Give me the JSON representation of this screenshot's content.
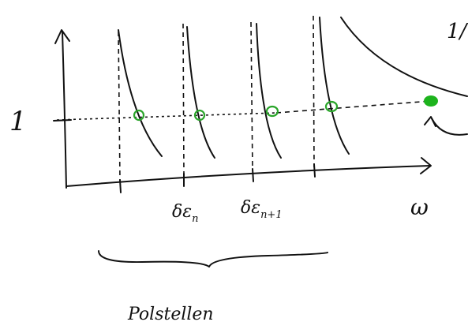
{
  "labels": {
    "one": "1",
    "top_right": "1/",
    "pole_n": "δε",
    "pole_n_sub": "n",
    "pole_n1": "δε",
    "pole_n1_sub": "n+1",
    "omega": "ω",
    "brace_label": "Polstellen"
  }
}
